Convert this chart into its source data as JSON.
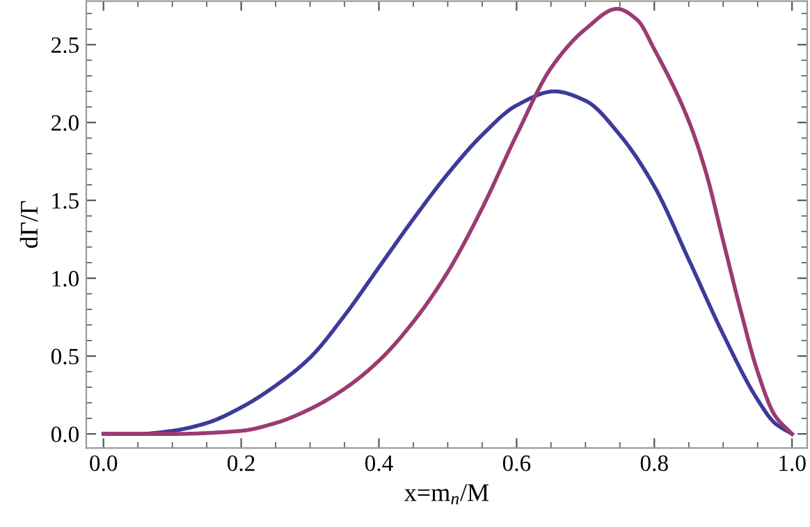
{
  "chart_data": {
    "type": "line",
    "xlabel": "x=m$_{n}$/M",
    "ylabel": "dΓ/Γ",
    "series": [
      {
        "color": "#3d3b98",
        "x": [
          0,
          0.05,
          0.1,
          0.15,
          0.2,
          0.25,
          0.3,
          0.35,
          0.4,
          0.45,
          0.5,
          0.55,
          0.6,
          0.655,
          0.7,
          0.75,
          0.8,
          0.85,
          0.9,
          0.95,
          0.975,
          1.0
        ],
        "values": [
          0,
          0.0,
          0.02,
          0.07,
          0.17,
          0.31,
          0.49,
          0.76,
          1.07,
          1.38,
          1.67,
          1.92,
          2.11,
          2.2,
          2.14,
          1.92,
          1.59,
          1.12,
          0.64,
          0.22,
          0.07,
          0
        ]
      },
      {
        "color": "#9b3b72",
        "x": [
          0,
          0.1,
          0.2,
          0.25,
          0.3,
          0.35,
          0.4,
          0.45,
          0.5,
          0.55,
          0.6,
          0.65,
          0.7,
          0.746,
          0.775,
          0.8,
          0.85,
          0.875,
          0.9,
          0.925,
          0.95,
          0.975,
          1.0
        ],
        "values": [
          0,
          0.0,
          0.02,
          0.07,
          0.16,
          0.29,
          0.47,
          0.72,
          1.04,
          1.45,
          1.92,
          2.35,
          2.6,
          2.73,
          2.66,
          2.47,
          2.01,
          1.68,
          1.24,
          0.8,
          0.4,
          0.12,
          0
        ]
      }
    ],
    "xlim": [
      -0.025,
      1.022
    ],
    "ylim": [
      -0.09,
      2.78
    ],
    "xticks": [
      {
        "value": 0,
        "label": "0.0"
      },
      0.2,
      0.4,
      0.6,
      0.8,
      {
        "value": 1,
        "label": "1.0"
      }
    ],
    "yticks": [
      {
        "value": 0,
        "label": "0.0"
      },
      0.5,
      {
        "value": 1,
        "label": "1.0"
      },
      1.5,
      {
        "value": 2,
        "label": "2.0"
      },
      2.5
    ],
    "grid": false,
    "legend": false,
    "marker": "none",
    "line_style": "solid"
  }
}
